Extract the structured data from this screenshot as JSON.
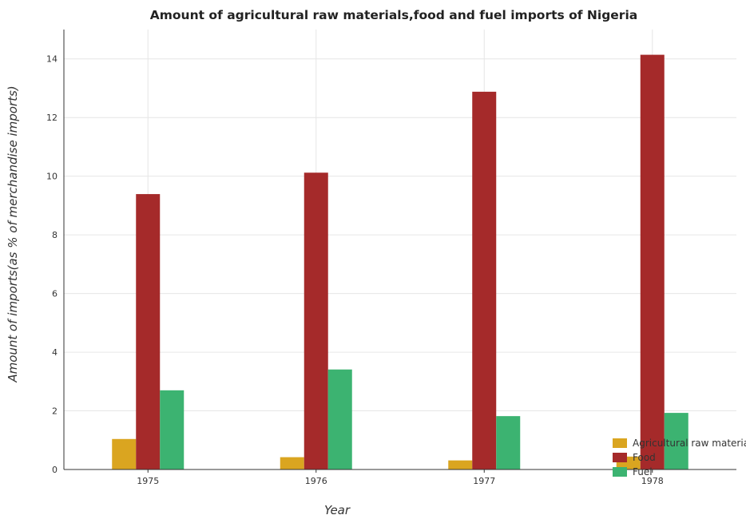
{
  "chart_data": {
    "type": "bar",
    "title": "Amount of agricultural raw materials,food and fuel imports of Nigeria",
    "xlabel": "Year",
    "ylabel": "Amount of imports(as % of merchandise imports)",
    "categories": [
      "1975",
      "1976",
      "1977",
      "1978"
    ],
    "series": [
      {
        "name": "Agricultural raw materials",
        "color": "#daa520",
        "values": [
          1.04,
          0.42,
          0.31,
          0.44
        ]
      },
      {
        "name": "Food",
        "color": "#a52a2a",
        "values": [
          9.39,
          10.12,
          12.88,
          14.14
        ]
      },
      {
        "name": "Fuel",
        "color": "#3cb371",
        "values": [
          2.7,
          3.41,
          1.82,
          1.93
        ]
      }
    ],
    "ylim": [
      0,
      15
    ],
    "yticks": [
      0,
      2,
      4,
      6,
      8,
      10,
      12,
      14
    ],
    "grid": true,
    "legend_position": "bottom-right"
  }
}
